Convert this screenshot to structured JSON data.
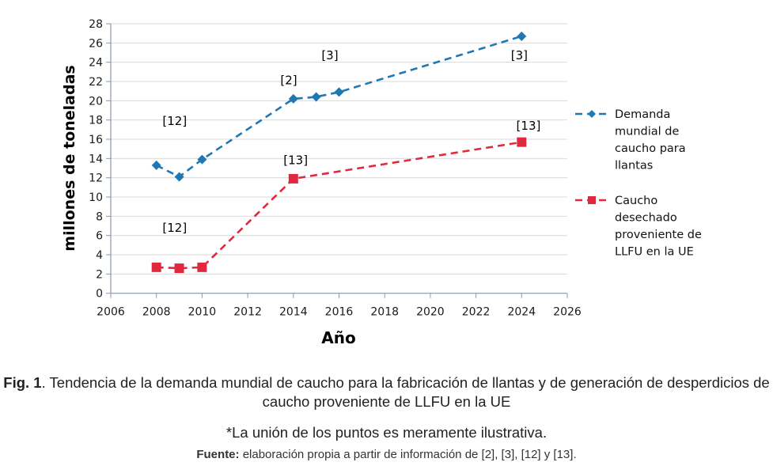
{
  "chart_data": {
    "type": "line",
    "title": "",
    "xlabel": "Año",
    "ylabel": "millones de toneladas",
    "xlim": [
      2006,
      2026
    ],
    "ylim": [
      0,
      28
    ],
    "xticks": [
      2006,
      2008,
      2010,
      2012,
      2014,
      2016,
      2018,
      2020,
      2022,
      2024,
      2026
    ],
    "yticks": [
      0,
      2,
      4,
      6,
      8,
      10,
      12,
      14,
      16,
      18,
      20,
      22,
      24,
      26,
      28
    ],
    "grid": "horizontal",
    "legend_position": "right",
    "series": [
      {
        "name": "Demanda mundial de caucho para llantas",
        "legend_lines": [
          "Demanda",
          "mundial de",
          "caucho para",
          "llantas"
        ],
        "color": "#1f77b4",
        "marker": "diamond",
        "line_style": "dashed",
        "x": [
          2008,
          2009,
          2010,
          2014,
          2015,
          2016,
          2024
        ],
        "y": [
          13.3,
          12.1,
          13.9,
          20.2,
          20.4,
          20.9,
          26.7
        ]
      },
      {
        "name": "Caucho desechado proveniente de LLFU en la UE",
        "legend_lines": [
          "Caucho",
          "desechado",
          "proveniente de",
          "LLFU en la UE"
        ],
        "color": "#e0283f",
        "marker": "square",
        "line_style": "dashed",
        "x": [
          2008,
          2009,
          2010,
          2014,
          2024
        ],
        "y": [
          2.7,
          2.6,
          2.7,
          11.9,
          15.7
        ]
      }
    ],
    "annotations": [
      {
        "text": "[12]",
        "x": 2008.8,
        "y": 17.5
      },
      {
        "text": "[2]",
        "x": 2013.8,
        "y": 21.7
      },
      {
        "text": "[3]",
        "x": 2015.6,
        "y": 24.3
      },
      {
        "text": "[3]",
        "x": 2023.9,
        "y": 24.3
      },
      {
        "text": "[13]",
        "x": 2014.1,
        "y": 13.4
      },
      {
        "text": "[13]",
        "x": 2024.3,
        "y": 17.0
      },
      {
        "text": "[12]",
        "x": 2008.8,
        "y": 6.4
      }
    ]
  },
  "caption": {
    "fig_label": "Fig. 1",
    "fig_text": ". Tendencia de la demanda mundial de caucho para la fabricación de llantas y de generación de desperdicios de caucho proveniente de LLFU en la UE",
    "note": "*La unión de los puntos es meramente ilustrativa.",
    "source_label": "Fuente:",
    "source_text": " elaboración propia a partir de información de [2], [3], [12] y [13]."
  }
}
